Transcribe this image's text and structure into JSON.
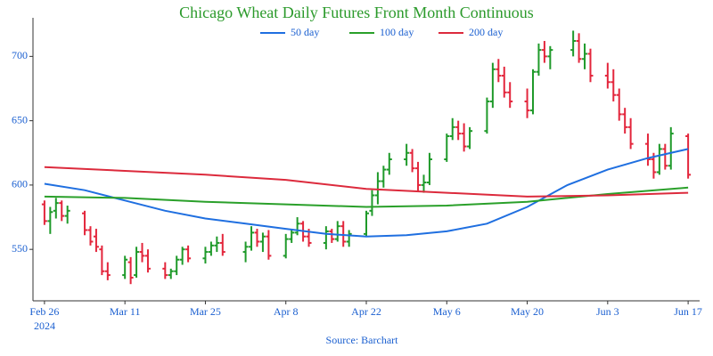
{
  "chart_data": {
    "type": "ohlc",
    "title": "Chicago Wheat Daily Futures Front Month Continuous",
    "source": "Source: Barchart",
    "x": [
      "2024-02-26",
      "2024-02-27",
      "2024-02-28",
      "2024-02-29",
      "2024-03-01",
      "2024-03-04",
      "2024-03-05",
      "2024-03-06",
      "2024-03-07",
      "2024-03-08",
      "2024-03-11",
      "2024-03-12",
      "2024-03-13",
      "2024-03-14",
      "2024-03-15",
      "2024-03-18",
      "2024-03-19",
      "2024-03-20",
      "2024-03-21",
      "2024-03-22",
      "2024-03-25",
      "2024-03-26",
      "2024-03-27",
      "2024-03-28",
      "2024-04-01",
      "2024-04-02",
      "2024-04-03",
      "2024-04-04",
      "2024-04-05",
      "2024-04-08",
      "2024-04-09",
      "2024-04-10",
      "2024-04-11",
      "2024-04-12",
      "2024-04-15",
      "2024-04-16",
      "2024-04-17",
      "2024-04-18",
      "2024-04-19",
      "2024-04-22",
      "2024-04-23",
      "2024-04-24",
      "2024-04-25",
      "2024-04-26",
      "2024-04-29",
      "2024-04-30",
      "2024-05-01",
      "2024-05-02",
      "2024-05-03",
      "2024-05-06",
      "2024-05-07",
      "2024-05-08",
      "2024-05-09",
      "2024-05-10",
      "2024-05-13",
      "2024-05-14",
      "2024-05-15",
      "2024-05-16",
      "2024-05-17",
      "2024-05-20",
      "2024-05-21",
      "2024-05-22",
      "2024-05-23",
      "2024-05-24",
      "2024-05-28",
      "2024-05-29",
      "2024-05-30",
      "2024-05-31",
      "2024-06-03",
      "2024-06-04",
      "2024-06-05",
      "2024-06-06",
      "2024-06-07",
      "2024-06-10",
      "2024-06-11",
      "2024-06-12",
      "2024-06-13",
      "2024-06-14",
      "2024-06-17"
    ],
    "open": [
      585,
      572,
      580,
      586,
      576,
      578,
      565,
      560,
      550,
      533,
      530,
      540,
      530,
      548,
      545,
      535,
      530,
      533,
      542,
      550,
      543,
      548,
      553,
      555,
      548,
      552,
      563,
      556,
      560,
      545,
      558,
      563,
      570,
      560,
      555,
      564,
      558,
      568,
      556,
      562,
      580,
      592,
      603,
      612,
      620,
      625,
      613,
      600,
      602,
      620,
      638,
      645,
      640,
      630,
      642,
      665,
      690,
      685,
      672,
      665,
      658,
      688,
      705,
      700,
      705,
      712,
      698,
      702,
      685,
      680,
      670,
      655,
      645,
      632,
      620,
      610,
      628,
      615,
      638
    ],
    "high": [
      588,
      583,
      590,
      588,
      584,
      580,
      568,
      566,
      553,
      540,
      545,
      544,
      552,
      555,
      550,
      540,
      535,
      545,
      552,
      553,
      552,
      556,
      560,
      562,
      556,
      568,
      566,
      563,
      565,
      562,
      566,
      575,
      572,
      566,
      568,
      566,
      572,
      572,
      565,
      580,
      596,
      610,
      615,
      625,
      632,
      628,
      618,
      608,
      625,
      640,
      652,
      650,
      648,
      645,
      668,
      695,
      698,
      692,
      680,
      675,
      690,
      710,
      712,
      708,
      720,
      718,
      710,
      706,
      695,
      690,
      675,
      660,
      652,
      640,
      625,
      632,
      632,
      645,
      640
    ],
    "low": [
      569,
      562,
      574,
      572,
      570,
      561,
      553,
      548,
      530,
      526,
      527,
      523,
      528,
      540,
      532,
      527,
      527,
      530,
      538,
      540,
      539,
      545,
      548,
      545,
      540,
      549,
      552,
      548,
      542,
      543,
      555,
      561,
      556,
      552,
      550,
      555,
      556,
      552,
      552,
      560,
      576,
      585,
      598,
      608,
      615,
      610,
      595,
      594,
      600,
      618,
      635,
      635,
      626,
      628,
      640,
      660,
      680,
      668,
      660,
      652,
      655,
      685,
      695,
      690,
      700,
      695,
      690,
      680,
      675,
      665,
      650,
      640,
      628,
      615,
      605,
      608,
      612,
      612,
      605
    ],
    "close": [
      572,
      579,
      586,
      576,
      580,
      565,
      556,
      552,
      533,
      530,
      542,
      528,
      548,
      545,
      535,
      530,
      533,
      542,
      550,
      543,
      548,
      553,
      555,
      548,
      552,
      563,
      556,
      560,
      545,
      558,
      563,
      570,
      560,
      555,
      564,
      558,
      568,
      556,
      562,
      578,
      592,
      603,
      612,
      620,
      625,
      613,
      600,
      602,
      620,
      638,
      645,
      640,
      630,
      642,
      665,
      690,
      685,
      672,
      665,
      658,
      688,
      705,
      700,
      705,
      712,
      698,
      702,
      685,
      680,
      670,
      655,
      645,
      632,
      620,
      610,
      628,
      615,
      640,
      608
    ],
    "up_color": "#1f9a2a",
    "down_color": "#e3263c",
    "series": [
      {
        "name": "50 day",
        "color": "#1f6fe0",
        "x": [
          "2024-02-26",
          "2024-03-04",
          "2024-03-11",
          "2024-03-18",
          "2024-03-25",
          "2024-04-01",
          "2024-04-08",
          "2024-04-15",
          "2024-04-22",
          "2024-04-29",
          "2024-05-06",
          "2024-05-13",
          "2024-05-20",
          "2024-05-27",
          "2024-06-03",
          "2024-06-10",
          "2024-06-17"
        ],
        "values": [
          601,
          596,
          588,
          580,
          574,
          570,
          566,
          562,
          560,
          561,
          564,
          570,
          583,
          600,
          612,
          621,
          628
        ]
      },
      {
        "name": "100 day",
        "color": "#2aa02a",
        "x": [
          "2024-02-26",
          "2024-03-11",
          "2024-03-25",
          "2024-04-08",
          "2024-04-22",
          "2024-05-06",
          "2024-05-20",
          "2024-06-03",
          "2024-06-17"
        ],
        "values": [
          591,
          590,
          587,
          585,
          583,
          584,
          587,
          593,
          598
        ]
      },
      {
        "name": "200 day",
        "color": "#dc2a3c",
        "x": [
          "2024-02-26",
          "2024-03-11",
          "2024-03-25",
          "2024-04-08",
          "2024-04-22",
          "2024-05-06",
          "2024-05-20",
          "2024-06-03",
          "2024-06-17"
        ],
        "values": [
          614,
          611,
          608,
          604,
          597,
          594,
          591,
          592,
          594
        ]
      }
    ],
    "xlim": [
      "2024-02-24",
      "2024-06-19"
    ],
    "xticks": [
      {
        "value": "2024-02-26",
        "label": "Feb 26"
      },
      {
        "value": "2024-03-11",
        "label": "Mar 11"
      },
      {
        "value": "2024-03-25",
        "label": "Mar 25"
      },
      {
        "value": "2024-04-08",
        "label": "Apr 8"
      },
      {
        "value": "2024-04-22",
        "label": "Apr 22"
      },
      {
        "value": "2024-05-06",
        "label": "May 6"
      },
      {
        "value": "2024-05-20",
        "label": "May 20"
      },
      {
        "value": "2024-06-03",
        "label": "Jun 3"
      },
      {
        "value": "2024-06-17",
        "label": "Jun 17"
      }
    ],
    "x_year_label": "2024",
    "ylim": [
      510,
      730
    ],
    "yticks": [
      550,
      600,
      650,
      700
    ]
  }
}
